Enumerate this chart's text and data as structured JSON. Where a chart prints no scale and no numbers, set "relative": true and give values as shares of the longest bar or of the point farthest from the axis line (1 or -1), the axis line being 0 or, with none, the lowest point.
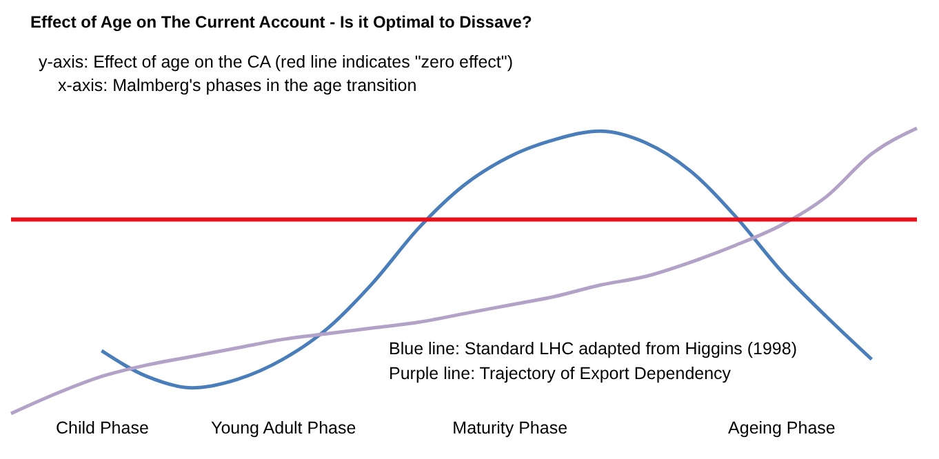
{
  "chart_data": {
    "type": "line",
    "title": "Effect of Age on The Current Account  - Is it Optimal to Dissave?",
    "annotations": [
      "y-axis: Effect of age on the CA (red line indicates \"zero effect\")",
      "x-axis: Malmberg's phases in the age transition",
      "Blue line: Standard LHC adapted from Higgins (1998)",
      "Purple line:  Trajectory of Export Dependency"
    ],
    "relative": true,
    "categories": [
      null,
      null,
      "Child Phase",
      null,
      null,
      null,
      "Young Adult Phase",
      null,
      null,
      null,
      null,
      "Maturity Phase",
      null,
      null,
      null,
      null,
      null,
      "Ageing Phase",
      null,
      null,
      null
    ],
    "series": [
      {
        "color": "#4a7ebb",
        "values": [
          null,
          null,
          0.22,
          0.13,
          0.09,
          0.12,
          0.19,
          0.3,
          0.46,
          0.65,
          0.8,
          0.9,
          0.96,
          0.99,
          0.95,
          0.85,
          0.69,
          0.5,
          0.34,
          0.19,
          null
        ]
      },
      {
        "color": "#b3a2c7",
        "values": [
          0,
          0.07,
          0.13,
          0.17,
          0.2,
          0.23,
          0.26,
          0.28,
          0.3,
          0.32,
          0.35,
          0.38,
          0.41,
          0.45,
          0.48,
          0.53,
          0.59,
          0.66,
          0.76,
          0.91,
          1.0
        ]
      }
    ],
    "ref_lines": [
      {
        "axis": "y",
        "value": 0.68,
        "color": "#e8101a"
      }
    ],
    "line_style": "solid"
  }
}
